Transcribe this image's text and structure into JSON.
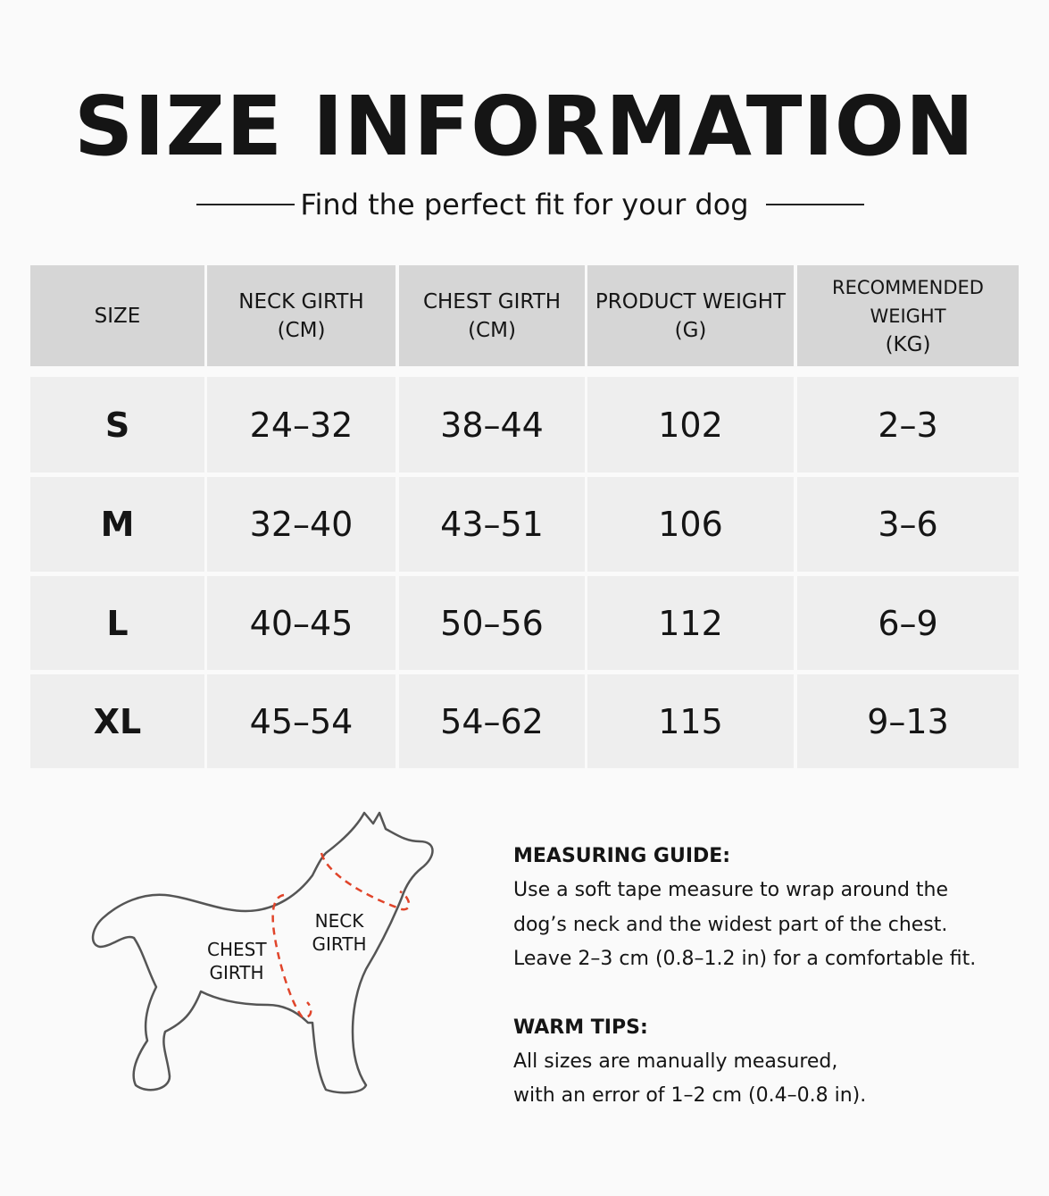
{
  "header": {
    "title": "SIZE INFORMATION",
    "subtitle": "Find the perfect fit for your dog"
  },
  "table": {
    "columns": [
      {
        "label": "SIZE"
      },
      {
        "label": "NECK GIRTH",
        "unit": "(CM)"
      },
      {
        "label": "CHEST GIRTH",
        "unit": "(CM)"
      },
      {
        "label": "PRODUCT WEIGHT",
        "unit": "(G)"
      },
      {
        "label": "RECOMMENDED WEIGHT",
        "unit": "(KG)"
      }
    ],
    "rows": [
      [
        "S",
        "24–32",
        "38–44",
        "102",
        "2–3"
      ],
      [
        "M",
        "32–40",
        "43–51",
        "106",
        "3–6"
      ],
      [
        "L",
        "40–45",
        "50–56",
        "112",
        "6–9"
      ],
      [
        "XL",
        "45–54",
        "54–62",
        "115",
        "9–13"
      ]
    ]
  },
  "diagram": {
    "labels": [
      [
        "CHEST",
        "GIRTH"
      ],
      [
        "NECK",
        "GIRTH"
      ]
    ]
  },
  "guide": {
    "measuring": {
      "title": "MEASURING GUIDE:",
      "lines": [
        "Use a soft tape measure to wrap around the",
        "dog’s neck and the widest part of the chest.",
        "Leave 2–3 cm (0.8–1.2 in) for a comfortable fit."
      ]
    },
    "tips": {
      "title": "WARM TIPS:",
      "lines": [
        "All sizes are manually measured,",
        "with an error of 1–2 cm (0.4–0.8 in)."
      ]
    }
  }
}
